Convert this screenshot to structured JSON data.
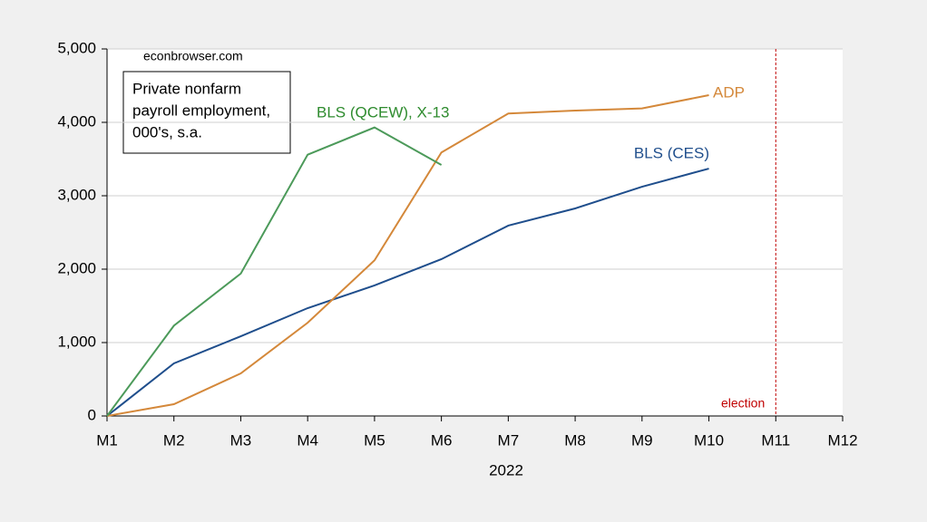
{
  "chart_data": {
    "type": "line",
    "source": "econbrowser.com",
    "note": [
      "Private nonfarm",
      "payroll employment,",
      "000's, s.a."
    ],
    "xlabel": "2022",
    "categories": [
      "M1",
      "M2",
      "M3",
      "M4",
      "M5",
      "M6",
      "M7",
      "M8",
      "M9",
      "M10",
      "M11",
      "M12"
    ],
    "series": [
      {
        "name": "BLS (CES)",
        "color": "#1f4e8c",
        "values": [
          0,
          716,
          1086,
          1469,
          1778,
          2136,
          2593,
          2827,
          3123,
          3370,
          null,
          null
        ]
      },
      {
        "name": "ADP",
        "color": "#d4883a",
        "values": [
          0,
          160,
          580,
          1270,
          2120,
          3590,
          4120,
          4160,
          4190,
          4370,
          null,
          null
        ]
      },
      {
        "name": "BLS (QCEW), X-13",
        "color": "#4c9a5a",
        "label_color": "#2e8b2e",
        "values": [
          0,
          1230,
          1940,
          3560,
          3930,
          3420,
          null,
          null,
          null,
          null,
          null,
          null
        ]
      }
    ],
    "ylim": [
      0,
      5000
    ],
    "yticks": [
      0,
      {
        "value": 1000,
        "label": "1,000"
      },
      {
        "value": 2000,
        "label": "2,000"
      },
      {
        "value": 3000,
        "label": "3,000"
      },
      {
        "value": 4000,
        "label": "4,000"
      },
      {
        "value": 5000,
        "label": "5,000"
      }
    ],
    "grid": true,
    "vline": {
      "category": "M11",
      "label": "election",
      "color": "#c00000"
    }
  }
}
